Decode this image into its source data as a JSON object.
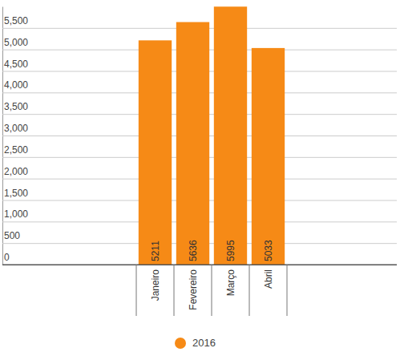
{
  "chart_data": {
    "type": "bar",
    "categories": [
      "Janeiro",
      "Fevereiro",
      "Março",
      "Abril"
    ],
    "series": [
      {
        "name": "2016",
        "color": "#f68a16",
        "values": [
          5211,
          5636,
          5995,
          5033
        ]
      }
    ],
    "ylim": [
      0,
      6000
    ],
    "yticks": [
      0,
      500,
      {
        "value": 1000,
        "label": "1,000"
      },
      {
        "value": 1500,
        "label": "1,500"
      },
      {
        "value": 2000,
        "label": "2,000"
      },
      {
        "value": 2500,
        "label": "2,500"
      },
      {
        "value": 3000,
        "label": "3,000"
      },
      {
        "value": 3500,
        "label": "3,500"
      },
      {
        "value": 4000,
        "label": "4,000"
      },
      {
        "value": 4500,
        "label": "4,500"
      },
      {
        "value": 5000,
        "label": "5,000"
      },
      {
        "value": 5500,
        "label": "5,500"
      }
    ],
    "grid": true,
    "data_labels": true,
    "legend": "bottom"
  }
}
